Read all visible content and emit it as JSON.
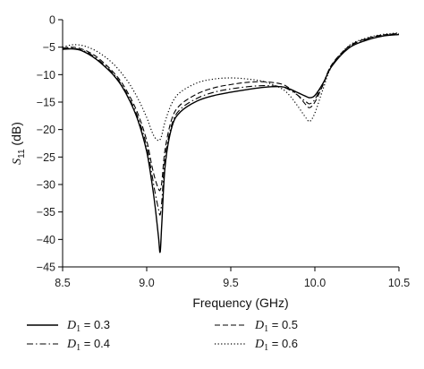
{
  "chart_data": {
    "type": "line",
    "xlabel": "Frequency (GHz)",
    "ylabel": "S11 (dB)",
    "ylabel_main": "S",
    "ylabel_sub": "11",
    "ylabel_unit": " (dB)",
    "xlim": [
      8.5,
      10.5
    ],
    "ylim": [
      -45,
      0
    ],
    "xticks": [
      8.5,
      9.0,
      9.5,
      10.0,
      10.5
    ],
    "xtick_labels": [
      "8.5",
      "9.0",
      "9.5",
      "10.0",
      "10.5"
    ],
    "yticks": [
      0,
      -5,
      -10,
      -15,
      -20,
      -25,
      -30,
      -35,
      -40,
      -45
    ],
    "ytick_labels": [
      "0",
      "−5",
      "−10",
      "−15",
      "−20",
      "−25",
      "−30",
      "−35",
      "−40",
      "−45"
    ],
    "grid": false,
    "legend_position": "bottom",
    "series": [
      {
        "name": "D1 = 0.3",
        "legend_var": "D",
        "legend_sub": "1",
        "legend_value": " = 0.3",
        "dash": "solid",
        "x": [
          8.5,
          8.55,
          8.6,
          8.65,
          8.7,
          8.75,
          8.8,
          8.85,
          8.9,
          8.95,
          9.0,
          9.03,
          9.05,
          9.07,
          9.08,
          9.09,
          9.11,
          9.15,
          9.2,
          9.3,
          9.4,
          9.5,
          9.6,
          9.7,
          9.8,
          9.85,
          9.9,
          9.95,
          9.97,
          10.0,
          10.05,
          10.1,
          10.2,
          10.3,
          10.4,
          10.5
        ],
        "y": [
          -5.4,
          -5.3,
          -5.5,
          -6.2,
          -7.2,
          -8.5,
          -10.0,
          -12.0,
          -14.8,
          -18.5,
          -24.0,
          -29.5,
          -34.0,
          -39.5,
          -42.3,
          -37.0,
          -26.5,
          -19.5,
          -16.8,
          -14.8,
          -13.8,
          -13.2,
          -12.7,
          -12.3,
          -12.2,
          -12.6,
          -13.3,
          -14.0,
          -14.2,
          -13.8,
          -11.5,
          -8.5,
          -5.2,
          -3.8,
          -3.0,
          -2.7
        ]
      },
      {
        "name": "D1 = 0.4",
        "legend_var": "D",
        "legend_sub": "1",
        "legend_value": " = 0.4",
        "dash": "dashdot",
        "x": [
          8.5,
          8.55,
          8.6,
          8.65,
          8.7,
          8.75,
          8.8,
          8.85,
          8.9,
          8.95,
          9.0,
          9.03,
          9.05,
          9.07,
          9.08,
          9.09,
          9.11,
          9.15,
          9.2,
          9.3,
          9.4,
          9.5,
          9.6,
          9.7,
          9.8,
          9.85,
          9.9,
          9.95,
          9.97,
          10.0,
          10.05,
          10.1,
          10.2,
          10.3,
          10.4,
          10.5
        ],
        "y": [
          -5.3,
          -5.2,
          -5.4,
          -6.0,
          -7.0,
          -8.3,
          -9.8,
          -11.8,
          -14.5,
          -18.0,
          -23.0,
          -28.0,
          -31.5,
          -34.5,
          -35.5,
          -33.0,
          -25.0,
          -19.0,
          -16.3,
          -14.3,
          -13.2,
          -12.6,
          -12.2,
          -12.0,
          -12.2,
          -12.8,
          -13.8,
          -15.0,
          -15.3,
          -14.5,
          -11.5,
          -8.3,
          -5.0,
          -3.6,
          -2.9,
          -2.6
        ]
      },
      {
        "name": "D1 = 0.5",
        "legend_var": "D",
        "legend_sub": "1",
        "legend_value": " = 0.5",
        "dash": "dashed",
        "x": [
          8.5,
          8.55,
          8.6,
          8.65,
          8.7,
          8.75,
          8.8,
          8.85,
          8.9,
          8.95,
          9.0,
          9.03,
          9.05,
          9.07,
          9.08,
          9.09,
          9.11,
          9.15,
          9.2,
          9.3,
          9.4,
          9.5,
          9.6,
          9.7,
          9.8,
          9.85,
          9.9,
          9.95,
          9.97,
          10.0,
          10.05,
          10.1,
          10.2,
          10.3,
          10.4,
          10.5
        ],
        "y": [
          -5.2,
          -5.0,
          -5.2,
          -5.8,
          -6.7,
          -8.0,
          -9.5,
          -11.4,
          -14.0,
          -17.3,
          -22.0,
          -26.5,
          -29.0,
          -30.8,
          -31.0,
          -29.5,
          -23.5,
          -18.0,
          -15.5,
          -13.5,
          -12.4,
          -11.8,
          -11.4,
          -11.3,
          -11.7,
          -12.5,
          -13.8,
          -15.6,
          -16.0,
          -15.0,
          -11.8,
          -8.2,
          -4.9,
          -3.5,
          -2.8,
          -2.5
        ]
      },
      {
        "name": "D1 = 0.6",
        "legend_var": "D",
        "legend_sub": "1",
        "legend_value": " = 0.6",
        "dash": "dotted",
        "x": [
          8.5,
          8.55,
          8.6,
          8.65,
          8.7,
          8.75,
          8.8,
          8.85,
          8.9,
          8.95,
          9.0,
          9.03,
          9.05,
          9.07,
          9.08,
          9.09,
          9.11,
          9.15,
          9.2,
          9.3,
          9.4,
          9.5,
          9.6,
          9.7,
          9.8,
          9.85,
          9.9,
          9.95,
          9.97,
          10.0,
          10.05,
          10.1,
          10.2,
          10.3,
          10.4,
          10.5
        ],
        "y": [
          -5.0,
          -4.6,
          -4.6,
          -5.0,
          -5.7,
          -6.7,
          -8.0,
          -9.7,
          -11.8,
          -14.5,
          -17.8,
          -20.3,
          -21.5,
          -22.0,
          -21.8,
          -21.0,
          -18.5,
          -15.2,
          -13.2,
          -11.5,
          -10.8,
          -10.6,
          -10.8,
          -11.3,
          -12.5,
          -13.8,
          -15.8,
          -18.0,
          -18.5,
          -17.0,
          -12.5,
          -8.5,
          -4.8,
          -3.4,
          -2.7,
          -2.4
        ]
      }
    ]
  }
}
